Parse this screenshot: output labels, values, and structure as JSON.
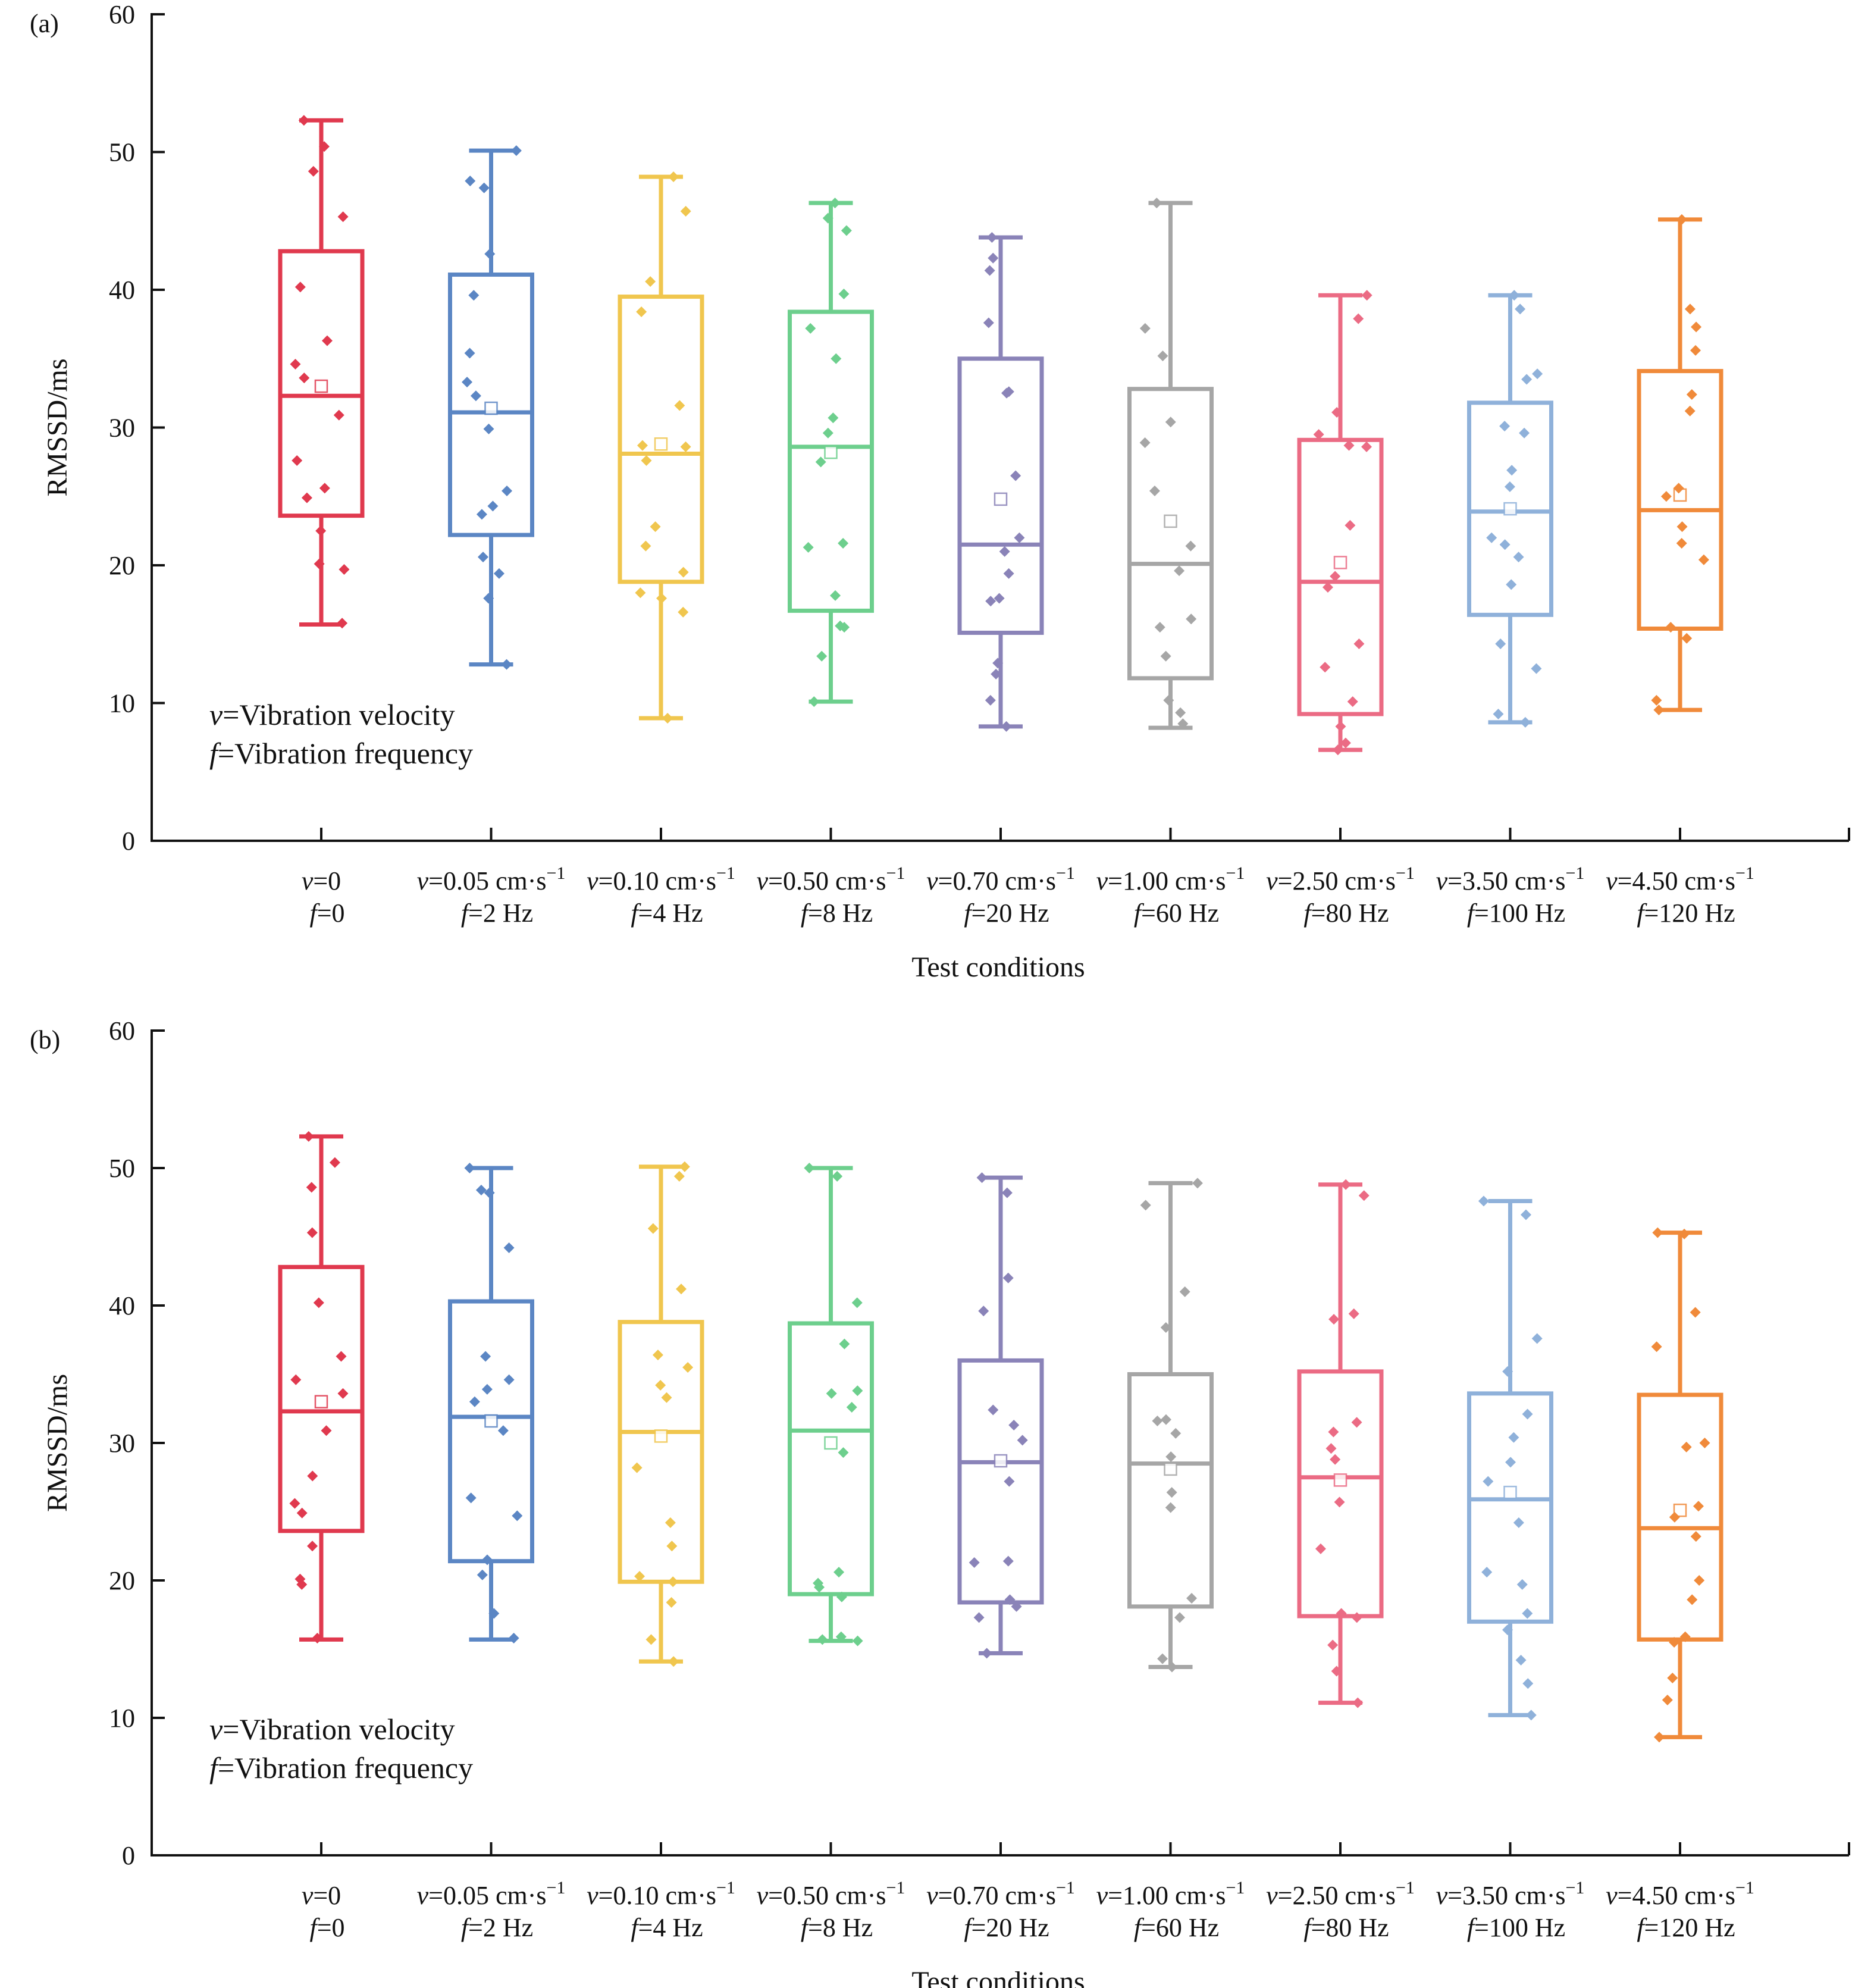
{
  "figure": {
    "panels": [
      {
        "label": "(a)",
        "xlabel": "Test conditions",
        "ylabel": "RMSSD/ms"
      },
      {
        "label": "(b)",
        "xlabel": "Test conditions",
        "ylabel": "RMSSD/ms"
      }
    ],
    "legend_note": {
      "v_symbol": "v",
      "v_text": "=Vibration velocity",
      "f_symbol": "f",
      "f_text": "=Vibration frequency"
    },
    "conditions": [
      {
        "v": "0",
        "f": "0",
        "color": "#e0394e"
      },
      {
        "v": "0.05 cm·s",
        "f": "2 Hz",
        "color": "#5b86c4"
      },
      {
        "v": "0.10 cm·s",
        "f": "4 Hz",
        "color": "#f0c64e"
      },
      {
        "v": "0.50 cm·s",
        "f": "8 Hz",
        "color": "#6dcf8d"
      },
      {
        "v": "0.70 cm·s",
        "f": "20 Hz",
        "color": "#8a83b8"
      },
      {
        "v": "1.00 cm·s",
        "f": "60 Hz",
        "color": "#a6a6a6"
      },
      {
        "v": "2.50 cm·s",
        "f": "80 Hz",
        "color": "#eb6b84"
      },
      {
        "v": "3.50 cm·s",
        "f": "100 Hz",
        "color": "#8fb1da"
      },
      {
        "v": "4.50 cm·s",
        "f": "120 Hz",
        "color": "#f08a3a"
      }
    ],
    "unit_exponent": "−1"
  },
  "chart_data": [
    {
      "type": "box",
      "panel": "(a)",
      "xlabel": "Test conditions",
      "ylabel": "RMSSD/ms",
      "ylim": [
        0,
        60
      ],
      "yticks": [
        0,
        10,
        20,
        30,
        40,
        50,
        60
      ],
      "boxes": [
        {
          "min": 15.7,
          "q1": 23.6,
          "median": 32.3,
          "q3": 42.8,
          "max": 52.3,
          "mean": 33.0,
          "points": [
            52.3,
            50.4,
            48.6,
            45.3,
            40.2,
            36.3,
            34.6,
            33.6,
            30.9,
            27.6,
            25.6,
            24.9,
            22.5,
            20.1,
            19.7,
            15.8
          ]
        },
        {
          "min": 12.8,
          "q1": 22.2,
          "median": 31.1,
          "q3": 41.1,
          "max": 50.1,
          "mean": 31.4,
          "points": [
            50.1,
            47.9,
            47.4,
            42.6,
            39.6,
            35.4,
            33.3,
            32.3,
            29.9,
            25.4,
            24.3,
            23.7,
            20.6,
            19.4,
            17.6,
            12.8
          ]
        },
        {
          "min": 8.9,
          "q1": 18.8,
          "median": 28.1,
          "q3": 39.5,
          "max": 48.2,
          "mean": 28.8,
          "points": [
            48.2,
            45.7,
            40.6,
            38.4,
            31.6,
            28.7,
            28.6,
            27.6,
            22.8,
            21.4,
            19.5,
            18.0,
            17.6,
            16.6,
            8.9
          ]
        },
        {
          "min": 10.1,
          "q1": 16.7,
          "median": 28.6,
          "q3": 38.4,
          "max": 46.3,
          "mean": 28.2,
          "points": [
            46.3,
            45.2,
            44.3,
            39.7,
            37.2,
            35.0,
            30.7,
            29.6,
            27.5,
            21.6,
            21.3,
            17.8,
            15.6,
            15.5,
            13.4,
            10.1
          ]
        },
        {
          "min": 8.3,
          "q1": 15.1,
          "median": 21.5,
          "q3": 35.0,
          "max": 43.8,
          "mean": 24.8,
          "points": [
            43.8,
            42.3,
            41.4,
            37.6,
            32.6,
            32.5,
            26.5,
            22.0,
            21.0,
            19.4,
            17.6,
            17.4,
            12.9,
            12.1,
            10.2,
            8.3
          ]
        },
        {
          "min": 8.2,
          "q1": 11.8,
          "median": 20.1,
          "q3": 32.8,
          "max": 46.3,
          "mean": 23.2,
          "points": [
            46.3,
            37.2,
            35.2,
            30.4,
            28.9,
            25.4,
            21.4,
            19.6,
            16.1,
            15.5,
            13.4,
            10.2,
            9.3,
            8.5
          ]
        },
        {
          "min": 6.6,
          "q1": 9.2,
          "median": 18.8,
          "q3": 29.1,
          "max": 39.6,
          "mean": 20.2,
          "points": [
            39.6,
            37.9,
            31.1,
            29.5,
            28.7,
            28.6,
            22.9,
            19.2,
            18.4,
            14.3,
            12.6,
            10.1,
            8.3,
            7.1,
            6.6
          ]
        },
        {
          "min": 8.6,
          "q1": 16.4,
          "median": 23.9,
          "q3": 31.8,
          "max": 39.6,
          "mean": 24.1,
          "points": [
            39.6,
            38.6,
            33.9,
            33.5,
            30.1,
            29.6,
            26.9,
            25.7,
            22.0,
            21.5,
            20.6,
            18.6,
            14.3,
            12.5,
            9.2,
            8.6
          ]
        },
        {
          "min": 9.5,
          "q1": 15.4,
          "median": 24.0,
          "q3": 34.1,
          "max": 45.1,
          "mean": 25.1,
          "points": [
            45.1,
            38.6,
            37.3,
            35.6,
            32.4,
            31.2,
            25.6,
            25.0,
            22.8,
            21.6,
            20.4,
            15.5,
            14.7,
            10.2,
            9.5
          ]
        }
      ]
    },
    {
      "type": "box",
      "panel": "(b)",
      "xlabel": "Test conditions",
      "ylabel": "RMSSD/ms",
      "ylim": [
        0,
        60
      ],
      "yticks": [
        0,
        10,
        20,
        30,
        40,
        50,
        60
      ],
      "boxes": [
        {
          "min": 15.7,
          "q1": 23.6,
          "median": 32.3,
          "q3": 42.8,
          "max": 52.3,
          "mean": 33.0,
          "points": [
            52.3,
            50.4,
            48.6,
            45.3,
            40.2,
            36.3,
            34.6,
            33.6,
            30.9,
            27.6,
            25.6,
            24.9,
            22.5,
            20.1,
            19.7,
            15.8
          ]
        },
        {
          "min": 15.7,
          "q1": 21.4,
          "median": 31.9,
          "q3": 40.3,
          "max": 50.0,
          "mean": 31.6,
          "points": [
            50.0,
            48.4,
            48.2,
            44.2,
            36.3,
            34.6,
            33.9,
            33.0,
            30.9,
            26.0,
            24.7,
            21.5,
            20.4,
            17.6,
            15.8
          ]
        },
        {
          "min": 14.1,
          "q1": 19.9,
          "median": 30.8,
          "q3": 38.8,
          "max": 50.1,
          "mean": 30.5,
          "points": [
            50.1,
            49.4,
            45.6,
            41.2,
            36.4,
            35.5,
            34.2,
            33.3,
            28.2,
            24.2,
            22.5,
            20.3,
            19.9,
            18.4,
            15.7,
            14.1
          ]
        },
        {
          "min": 15.6,
          "q1": 19.0,
          "median": 30.9,
          "q3": 38.7,
          "max": 50.0,
          "mean": 30.0,
          "points": [
            50.0,
            49.4,
            40.2,
            37.2,
            33.8,
            33.6,
            32.6,
            29.3,
            20.6,
            19.8,
            19.5,
            18.8,
            15.9,
            15.7,
            15.6
          ]
        },
        {
          "min": 14.7,
          "q1": 18.4,
          "median": 28.6,
          "q3": 36.0,
          "max": 49.3,
          "mean": 28.7,
          "points": [
            49.3,
            48.2,
            42.0,
            39.6,
            32.4,
            31.3,
            30.2,
            27.2,
            21.4,
            21.3,
            18.6,
            18.1,
            17.3,
            14.7
          ]
        },
        {
          "min": 13.7,
          "q1": 18.1,
          "median": 28.5,
          "q3": 35.0,
          "max": 48.9,
          "mean": 28.1,
          "points": [
            48.9,
            47.3,
            41.0,
            38.4,
            31.7,
            31.6,
            30.7,
            29.0,
            26.4,
            25.3,
            18.7,
            17.3,
            14.3,
            13.7
          ]
        },
        {
          "min": 11.1,
          "q1": 17.4,
          "median": 27.5,
          "q3": 35.2,
          "max": 48.8,
          "mean": 27.3,
          "points": [
            48.8,
            48.0,
            39.4,
            39.0,
            31.5,
            30.8,
            29.6,
            28.8,
            25.7,
            22.3,
            17.6,
            17.3,
            15.3,
            13.4,
            11.1
          ]
        },
        {
          "min": 10.2,
          "q1": 17.0,
          "median": 25.9,
          "q3": 33.6,
          "max": 47.6,
          "mean": 26.4,
          "points": [
            47.6,
            46.6,
            37.6,
            35.2,
            32.1,
            30.4,
            28.6,
            27.2,
            24.2,
            20.6,
            19.7,
            17.6,
            16.4,
            14.2,
            12.5,
            10.2
          ]
        },
        {
          "min": 8.6,
          "q1": 15.7,
          "median": 23.8,
          "q3": 33.5,
          "max": 45.3,
          "mean": 25.1,
          "points": [
            45.3,
            45.2,
            39.5,
            37.0,
            30.0,
            29.7,
            25.4,
            24.6,
            23.2,
            20.0,
            18.6,
            15.9,
            15.5,
            12.9,
            11.3,
            8.6
          ]
        }
      ]
    }
  ]
}
